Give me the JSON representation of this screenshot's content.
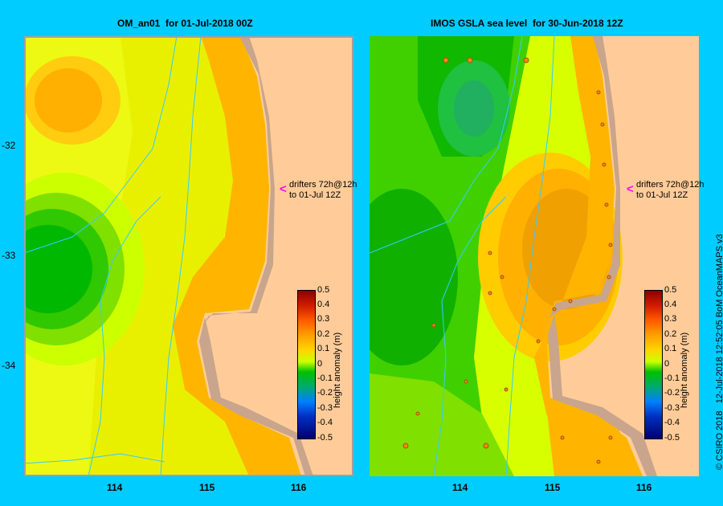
{
  "panels": [
    {
      "title": "OM_an01  for 01-Jul-2018 00Z"
    },
    {
      "title": "IMOS GSLA sea level  for 30-Jun-2018 12Z"
    }
  ],
  "lat_labels": [
    "-32",
    "-33",
    "-34"
  ],
  "lon_labels": [
    "114",
    "115",
    "116"
  ],
  "drifters": {
    "line1": "drifters 72h@12h",
    "line2": "to 01-Jul 12Z",
    "arrow": "<"
  },
  "colorbar": {
    "label": "height anomaly (m)",
    "ticks": [
      "0.5",
      "0.4",
      "0.3",
      "0.2",
      "0.1",
      "0",
      "-0.1",
      "-0.2",
      "-0.3",
      "-0.4",
      "-0.5"
    ],
    "range": [
      -0.5,
      0.5
    ],
    "colors": [
      "#8b0000",
      "#ff5a00",
      "#ffa500",
      "#ffd400",
      "#ccff00",
      "#00c000",
      "#00aa70",
      "#0080ff",
      "#000070"
    ]
  },
  "credit": "© CSIRO 2018   12-Jul-2018 12:52:05 BoM OceanMAPS v3",
  "map_colors": {
    "land": "#ffcc99",
    "coast": "#c8a58c",
    "river": "#33ccff"
  }
}
